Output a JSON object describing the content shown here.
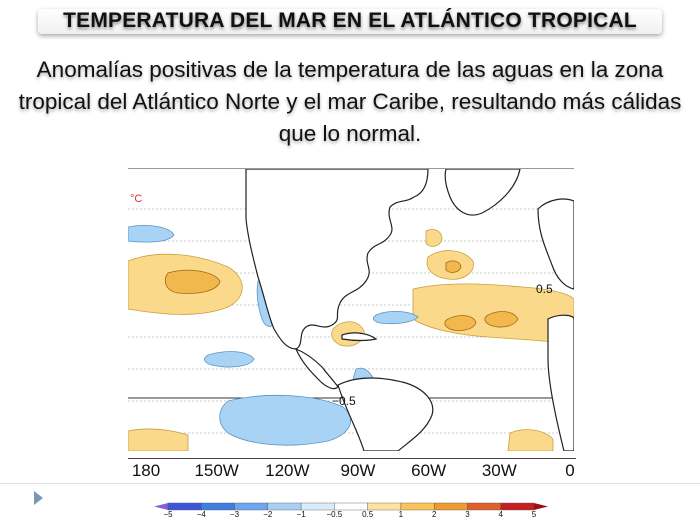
{
  "slide": {
    "title": "TEMPERATURA DEL MAR EN EL ATLÁNTICO TROPICAL",
    "subtitle": "Anomalías positivas de la temperatura de las aguas en la zona tropical del Atlántico Norte y el mar Caribe, resultando más cálidas que lo normal."
  },
  "map": {
    "unit": "°C",
    "contour_label_pos": "0.5",
    "contour_label_neg": "−0.5",
    "longitude_ticks": [
      "180",
      "150W",
      "120W",
      "90W",
      "60W",
      "30W",
      "0"
    ]
  },
  "colorbar": {
    "labels": [
      "−5",
      "−4",
      "−3",
      "−2",
      "−1",
      "−0.5",
      "0.5",
      "1",
      "2",
      "3",
      "4",
      "5"
    ],
    "colors": [
      "#8a5fd6",
      "#3b56d8",
      "#3e7fe0",
      "#6ea6ee",
      "#a8d0f5",
      "#d9ecfb",
      "#ffffff",
      "#fde2a0",
      "#fbc45a",
      "#f09a30",
      "#e0602a",
      "#c42020",
      "#9a1010"
    ]
  },
  "colors": {
    "warm": "#fbd98a",
    "warm_dark": "#f2b84e",
    "cool": "#a8d3f4",
    "land_outline": "#222222",
    "nav_arrow": "#7f95b8"
  }
}
